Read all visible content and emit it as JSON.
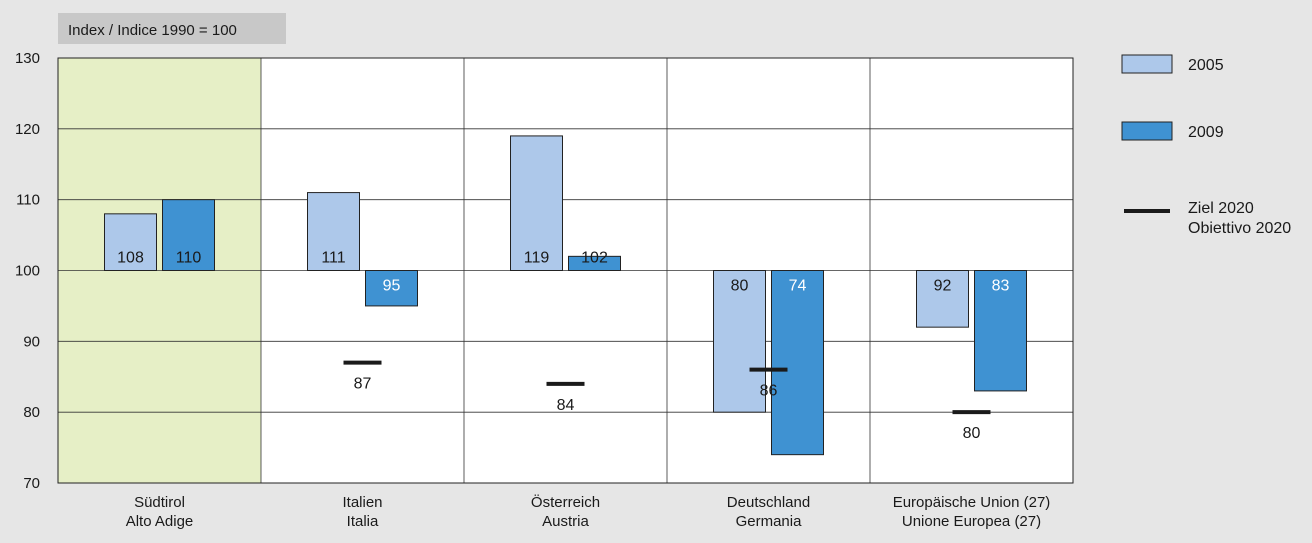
{
  "chart_data": {
    "type": "bar",
    "index_label": "Index / Indice 1990 = 100",
    "baseline": 100,
    "ylim": [
      70,
      130
    ],
    "yticks": [
      70,
      80,
      90,
      100,
      110,
      120,
      130
    ],
    "grid": true,
    "legend_position": "right",
    "categories": [
      {
        "line1": "Südtirol",
        "line2": "Alto Adige"
      },
      {
        "line1": "Italien",
        "line2": "Italia"
      },
      {
        "line1": "Österreich",
        "line2": "Austria"
      },
      {
        "line1": "Deutschland",
        "line2": "Germania"
      },
      {
        "line1": "Europäische Union (27)",
        "line2": "Unione Europea (27)"
      }
    ],
    "highlight_category": 0,
    "series": [
      {
        "name": "2005",
        "values": [
          108,
          111,
          119,
          80,
          92
        ]
      },
      {
        "name": "2009",
        "values": [
          110,
          95,
          102,
          74,
          83
        ]
      }
    ],
    "target": {
      "name_line1": "Ziel 2020",
      "name_line2": "Obiettivo 2020",
      "values": [
        null,
        87,
        84,
        86,
        80
      ]
    },
    "colors": {
      "series_2005": "#adc8ea",
      "series_2009": "#3f92d2",
      "highlight": "#e6efc6",
      "target": "#1a1a1a",
      "background": "#e6e6e6",
      "label_box": "#c8c8c8"
    }
  }
}
